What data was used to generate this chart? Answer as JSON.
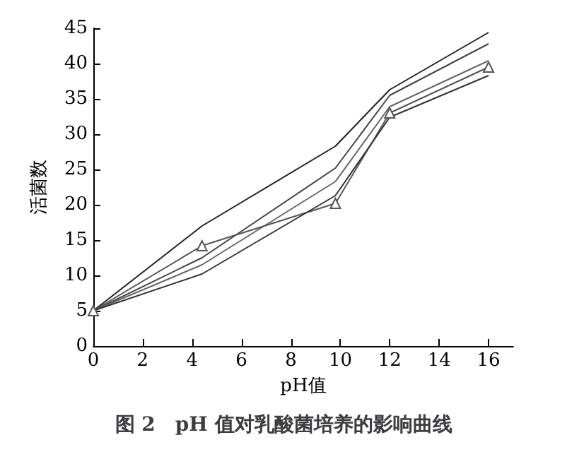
{
  "chart_data": {
    "type": "line",
    "title": "图 2　pH 值对乳酸菌培养的影响曲线",
    "xlabel": "pH值",
    "ylabel": "活菌数",
    "x": [
      0,
      4.4,
      9.8,
      12,
      16
    ],
    "series": [
      {
        "color": "#222222",
        "values": [
          5,
          17,
          28.3,
          36.3,
          44.4
        ]
      },
      {
        "color": "#444444",
        "values": [
          5,
          12.5,
          25.2,
          35.5,
          42.8
        ]
      },
      {
        "color": "#666666",
        "values": [
          5,
          11.5,
          23.3,
          33.9,
          40.4
        ]
      },
      {
        "color": "#555555",
        "marker": "triangle",
        "values": [
          5,
          14.2,
          20.2,
          33,
          39.5
        ]
      },
      {
        "color": "#333333",
        "values": [
          5,
          10.2,
          21.3,
          32.4,
          38.3
        ]
      }
    ],
    "xlim": [
      0,
      17
    ],
    "xticks": [
      0,
      2,
      4,
      6,
      8,
      10,
      12,
      14,
      16
    ],
    "ylim": [
      0,
      45
    ],
    "yticks": [
      0,
      5,
      10,
      15,
      20,
      25,
      30,
      35,
      40,
      45
    ],
    "grid": false,
    "marker": "none",
    "line_style": "solid"
  }
}
